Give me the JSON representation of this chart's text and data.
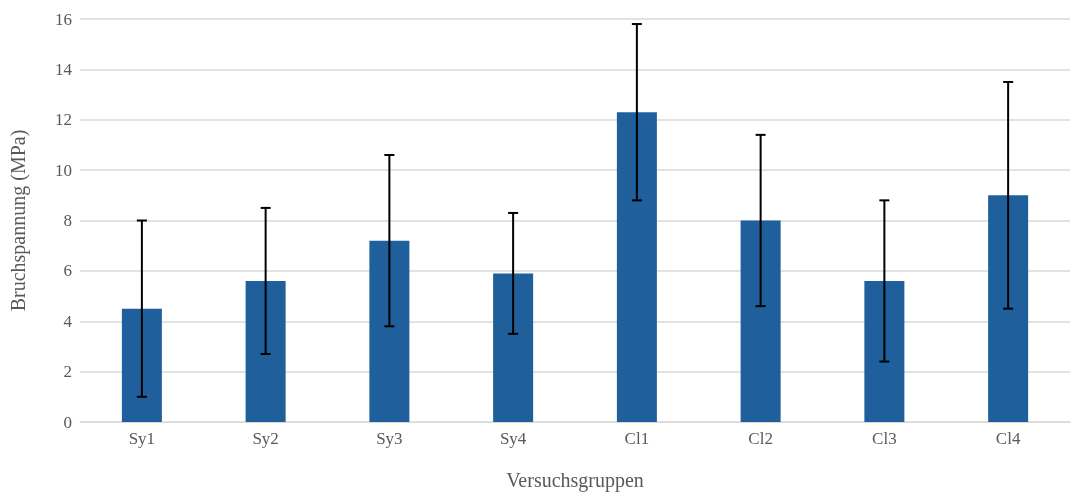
{
  "chart_data": {
    "type": "bar",
    "xlabel": "Versuchsgruppen",
    "ylabel": "Bruchspannung (MPa)",
    "categories": [
      "Sy1",
      "Sy2",
      "Sy3",
      "Sy4",
      "Cl1",
      "Cl2",
      "Cl3",
      "Cl4"
    ],
    "values": [
      4.5,
      5.6,
      7.2,
      5.9,
      12.3,
      8.0,
      5.6,
      9.0
    ],
    "errors": [
      3.5,
      2.9,
      3.4,
      2.4,
      3.5,
      3.4,
      3.2,
      4.5
    ],
    "color": "#1f5f9b",
    "ylim": [
      0,
      16
    ],
    "yticks": [
      0,
      2,
      4,
      6,
      8,
      10,
      12,
      14,
      16
    ],
    "grid": "y"
  }
}
